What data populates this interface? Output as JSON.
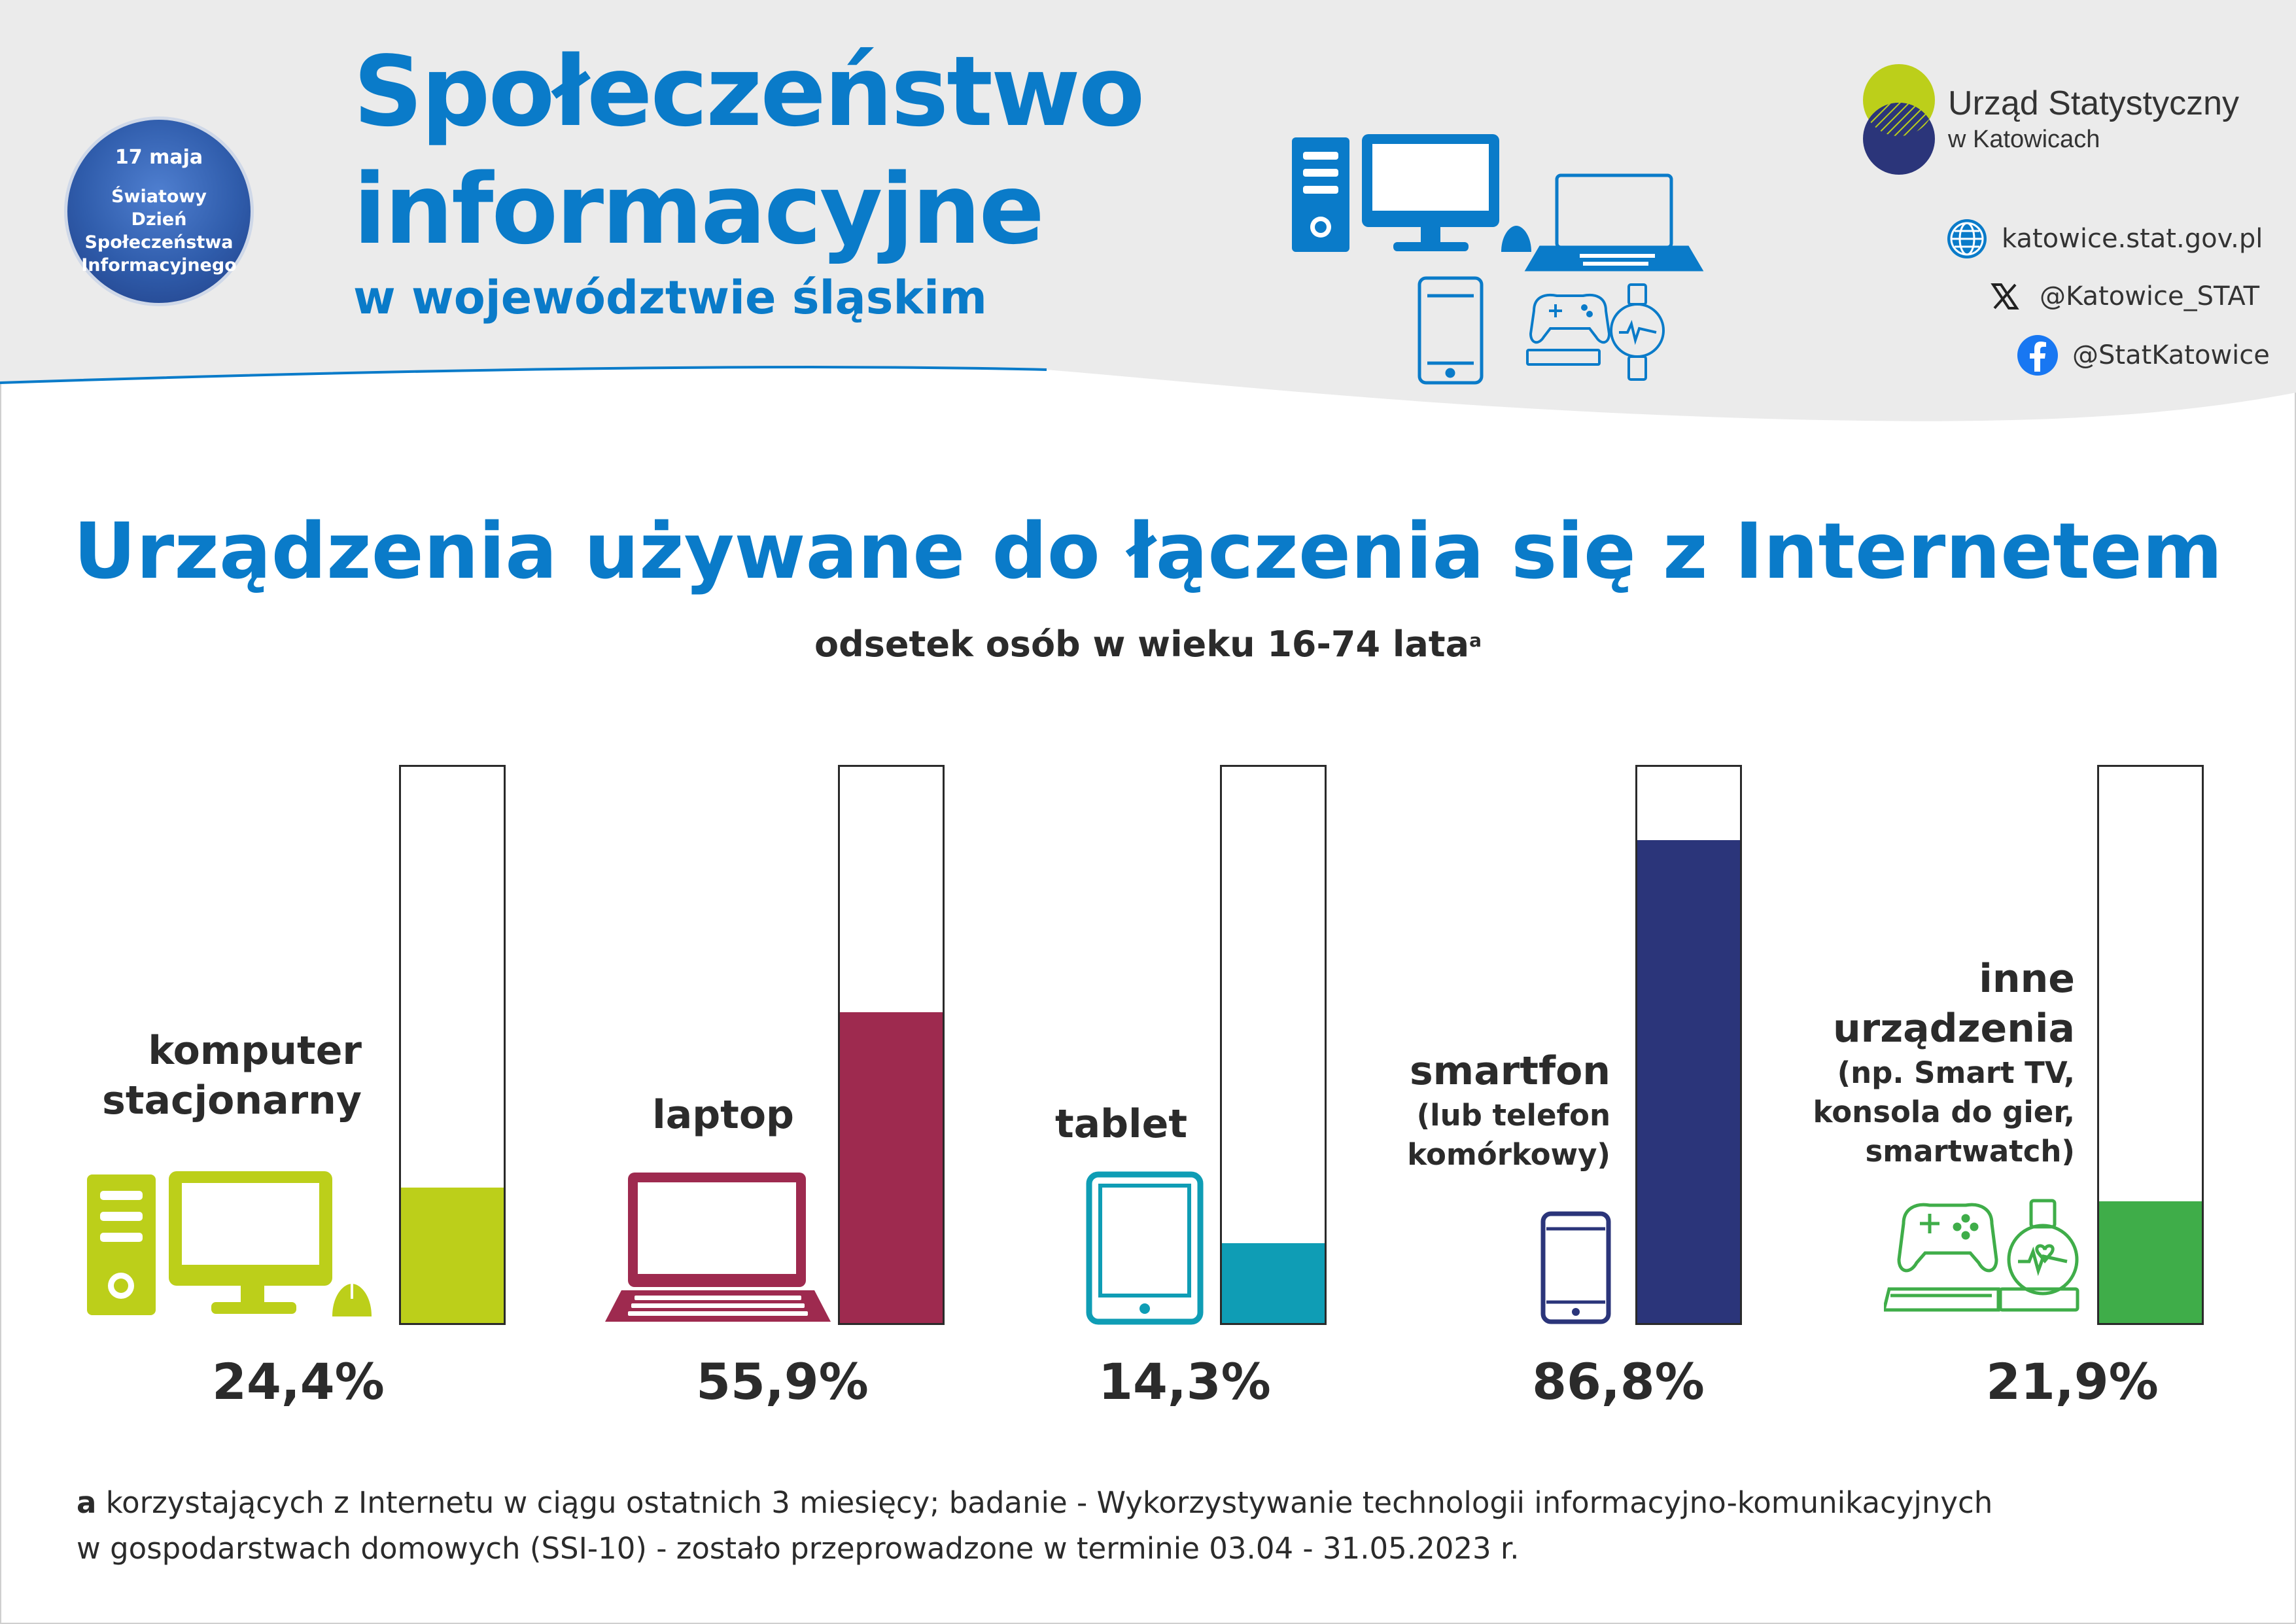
{
  "badge": {
    "date": "17 maja",
    "text": "Światowy Dzień Społeczeństwa Informacyjnego"
  },
  "header": {
    "title_line1": "Społeczeństwo",
    "title_line2": "informacyjne",
    "subtitle": "w województwie śląskim"
  },
  "logo": {
    "name": "Urząd Statystyczny",
    "sub": "w Katowicach"
  },
  "social": {
    "web": "katowice.stat.gov.pl",
    "x": "@Katowice_STAT",
    "facebook": "@StatKatowice"
  },
  "header_icons": [
    "desktop-computer-icon",
    "mouse-icon",
    "laptop-icon",
    "smartphone-icon",
    "gamepad-icon",
    "smartwatch-icon"
  ],
  "chart_data": {
    "type": "bar",
    "title": "Urządzenia używane do łączenia się z Internetem",
    "subtitle": "odsetek osób w wieku 16-74 lata",
    "subtitle_footnote_mark": "a",
    "ylim": [
      0,
      100
    ],
    "categories": [
      {
        "label": "komputer stacjonarny",
        "lines": [
          "komputer",
          "stacjonarny"
        ],
        "sub": [],
        "value": 24.4,
        "value_label": "24,4%",
        "color": "#bccf1a",
        "icon": "desktop-computer-icon"
      },
      {
        "label": "laptop",
        "lines": [
          "laptop"
        ],
        "sub": [],
        "value": 55.9,
        "value_label": "55,9%",
        "color": "#9e2a4f",
        "icon": "laptop-icon"
      },
      {
        "label": "tablet",
        "lines": [
          "tablet"
        ],
        "sub": [],
        "value": 14.3,
        "value_label": "14,3%",
        "color": "#0f9db5",
        "icon": "tablet-icon"
      },
      {
        "label": "smartfon",
        "lines": [
          "smartfon"
        ],
        "sub": [
          "(lub telefon",
          "komórkowy)"
        ],
        "value": 86.8,
        "value_label": "86,8%",
        "color": "#2b357a",
        "icon": "smartphone-icon"
      },
      {
        "label": "inne urządzenia",
        "lines": [
          "inne",
          "urządzenia"
        ],
        "sub": [
          "(np. Smart TV,",
          "konsola do gier,",
          "smartwatch)"
        ],
        "value": 21.9,
        "value_label": "21,9%",
        "color": "#3fad49",
        "icon": "gamepad-smartwatch-icon"
      }
    ]
  },
  "footnote": {
    "mark": "a",
    "line1": "korzystających z Internetu w ciągu ostatnich 3 miesięcy; badanie - Wykorzystywanie technologii informacyjno-komunikacyjnych",
    "line2": "w gospodarstwach domowych (SSI-10) - zostało przeprowadzone w terminie 03.04 - 31.05.2023 r."
  },
  "colors": {
    "brand_blue": "#0a7bc9",
    "navy": "#2b357a",
    "lime": "#bccf1a",
    "header_bg": "#ebebeb"
  }
}
